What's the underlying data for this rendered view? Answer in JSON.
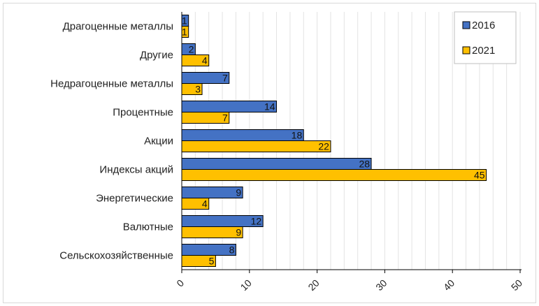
{
  "chart_data": {
    "type": "bar",
    "orientation": "horizontal",
    "categories": [
      "Драгоценные металлы",
      "Другие",
      "Недрагоценные металлы",
      "Процентные",
      "Акции",
      "Индексы акций",
      "Энергетические",
      "Валютные",
      "Сельскохозяйственные"
    ],
    "series": [
      {
        "name": "2016",
        "color": "#4472c4",
        "values": [
          1,
          2,
          7,
          14,
          18,
          28,
          9,
          12,
          8
        ]
      },
      {
        "name": "2021",
        "color": "#ffc000",
        "values": [
          1,
          4,
          3,
          7,
          22,
          45,
          4,
          9,
          5
        ]
      }
    ],
    "xlim": [
      0,
      50
    ],
    "xticks": [
      0,
      10,
      20,
      30,
      40,
      50
    ],
    "grid": "vertical",
    "legend": "top-right",
    "title": "",
    "xlabel": "",
    "ylabel": ""
  }
}
